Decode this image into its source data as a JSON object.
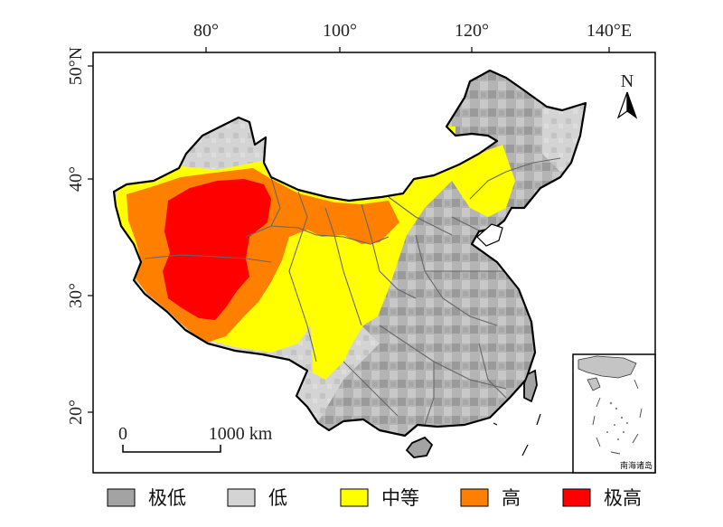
{
  "map": {
    "lon_labels": [
      "80°",
      "100°",
      "120°",
      "140°E"
    ],
    "lat_labels": [
      "50°N",
      "40°",
      "30°",
      "20°"
    ],
    "north_label": "N",
    "scale_zero": "0",
    "scale_max": "1000 km",
    "inset_label": "南海诸岛"
  },
  "legend": {
    "items": [
      {
        "label": "极低",
        "color": "#a3a3a3"
      },
      {
        "label": "低",
        "color": "#d4d4d4"
      },
      {
        "label": "中等",
        "color": "#ffff00"
      },
      {
        "label": "高",
        "color": "#ff7f00"
      },
      {
        "label": "极高",
        "color": "#ff0000"
      }
    ]
  }
}
